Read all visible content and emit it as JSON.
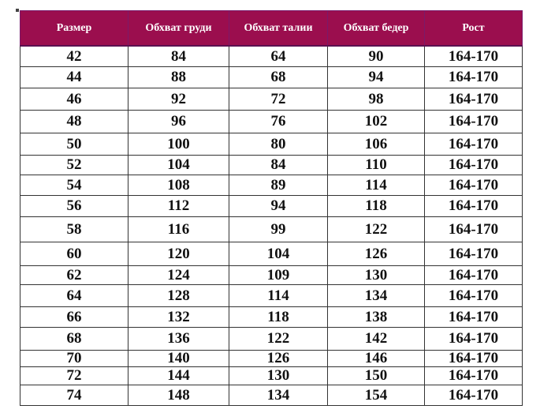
{
  "table": {
    "headers": [
      "Размер",
      "Обхват груди",
      "Обхват талии",
      "Обхват бедер",
      "Рост"
    ],
    "rows": [
      [
        "42",
        "84",
        "64",
        "90",
        "164-170"
      ],
      [
        "44",
        "88",
        "68",
        "94",
        "164-170"
      ],
      [
        "46",
        "92",
        "72",
        "98",
        "164-170"
      ],
      [
        "48",
        "96",
        "76",
        "102",
        "164-170"
      ],
      [
        "50",
        "100",
        "80",
        "106",
        "164-170"
      ],
      [
        "52",
        "104",
        "84",
        "110",
        "164-170"
      ],
      [
        "54",
        "108",
        "89",
        "114",
        "164-170"
      ],
      [
        "56",
        "112",
        "94",
        "118",
        "164-170"
      ],
      [
        "58",
        "116",
        "99",
        "122",
        "164-170"
      ],
      [
        "60",
        "120",
        "104",
        "126",
        "164-170"
      ],
      [
        "62",
        "124",
        "109",
        "130",
        "164-170"
      ],
      [
        "64",
        "128",
        "114",
        "134",
        "164-170"
      ],
      [
        "66",
        "132",
        "118",
        "138",
        "164-170"
      ],
      [
        "68",
        "136",
        "122",
        "142",
        "164-170"
      ],
      [
        "70",
        "140",
        "126",
        "146",
        "164-170"
      ],
      [
        "72",
        "144",
        "130",
        "150",
        "164-170"
      ],
      [
        "74",
        "148",
        "134",
        "154",
        "164-170"
      ]
    ]
  },
  "colors": {
    "header_bg": "#9b0e4e",
    "header_text": "#ffffff"
  }
}
